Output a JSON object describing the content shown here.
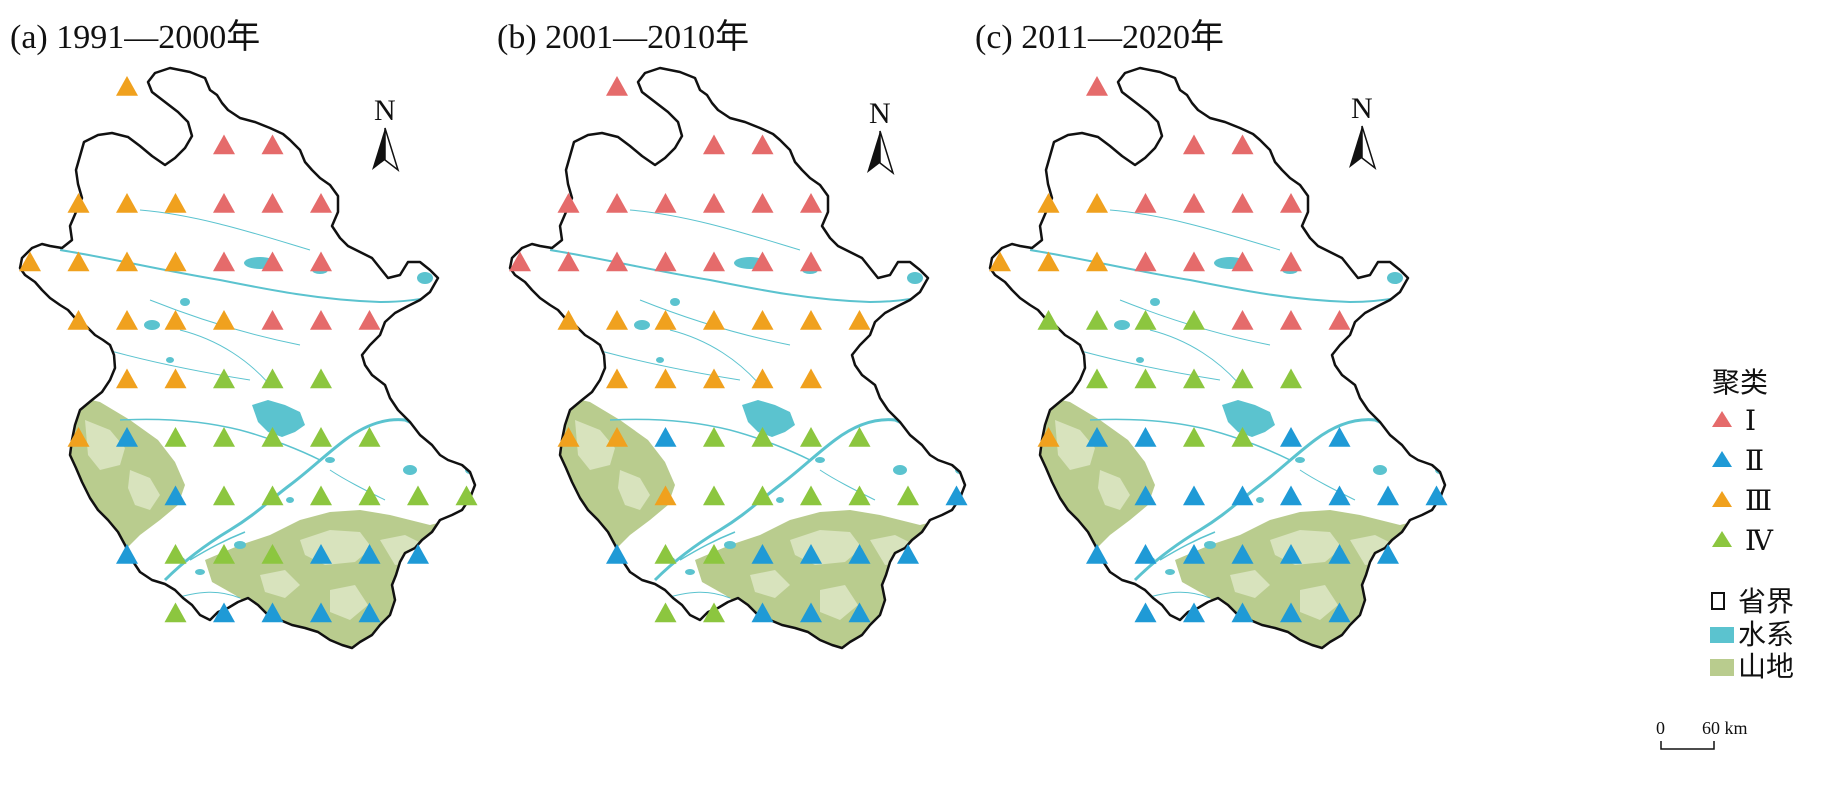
{
  "panels": [
    {
      "title": "(a) 1991—2000年",
      "grid": [
        [
          null,
          null,
          "III",
          null,
          null,
          null,
          null,
          null,
          null,
          null
        ],
        [
          null,
          null,
          null,
          null,
          "I",
          "I",
          null,
          null,
          null,
          null
        ],
        [
          null,
          "III",
          "III",
          "III",
          "I",
          "I",
          "I",
          null,
          null,
          null
        ],
        [
          "III",
          "III",
          "III",
          "III",
          "I",
          "I",
          "I",
          null,
          null,
          null
        ],
        [
          null,
          "III",
          "III",
          "III",
          "III",
          "I",
          "I",
          "I",
          null,
          null
        ],
        [
          null,
          null,
          "III",
          "III",
          "IV",
          "IV",
          "IV",
          null,
          null,
          null
        ],
        [
          null,
          "III",
          "II",
          "IV",
          "IV",
          "IV",
          "IV",
          "IV",
          null,
          null
        ],
        [
          null,
          null,
          null,
          "II",
          "IV",
          "IV",
          "IV",
          "IV",
          "IV",
          "IV"
        ],
        [
          null,
          null,
          "II",
          "IV",
          "IV",
          "IV",
          "II",
          "II",
          "II",
          null
        ],
        [
          null,
          null,
          null,
          "IV",
          "II",
          "II",
          "II",
          "II",
          null,
          null
        ]
      ]
    },
    {
      "title": "(b) 2001—2010年",
      "grid": [
        [
          null,
          null,
          "I",
          null,
          null,
          null,
          null,
          null,
          null,
          null
        ],
        [
          null,
          null,
          null,
          null,
          "I",
          "I",
          null,
          null,
          null,
          null
        ],
        [
          null,
          "I",
          "I",
          "I",
          "I",
          "I",
          "I",
          null,
          null,
          null
        ],
        [
          "I",
          "I",
          "I",
          "I",
          "I",
          "I",
          "I",
          null,
          null,
          null
        ],
        [
          null,
          "III",
          "III",
          "III",
          "III",
          "III",
          "III",
          "III",
          null,
          null
        ],
        [
          null,
          null,
          "III",
          "III",
          "III",
          "III",
          "III",
          null,
          null,
          null
        ],
        [
          null,
          "III",
          "III",
          "II",
          "IV",
          "IV",
          "IV",
          "IV",
          null,
          null
        ],
        [
          null,
          null,
          null,
          "III",
          "IV",
          "IV",
          "IV",
          "IV",
          "IV",
          "II"
        ],
        [
          null,
          null,
          "II",
          "IV",
          "IV",
          "II",
          "II",
          "II",
          "II",
          null
        ],
        [
          null,
          null,
          null,
          "IV",
          "IV",
          "II",
          "II",
          "II",
          null,
          null
        ]
      ]
    },
    {
      "title": "(c) 2011—2020年",
      "grid": [
        [
          null,
          null,
          "I",
          null,
          null,
          null,
          null,
          null,
          null,
          null
        ],
        [
          null,
          null,
          null,
          null,
          "I",
          "I",
          null,
          null,
          null,
          null
        ],
        [
          null,
          "III",
          "III",
          "I",
          "I",
          "I",
          "I",
          null,
          null,
          null
        ],
        [
          "III",
          "III",
          "III",
          "I",
          "I",
          "I",
          "I",
          null,
          null,
          null
        ],
        [
          null,
          "IV",
          "IV",
          "IV",
          "IV",
          "I",
          "I",
          "I",
          null,
          null
        ],
        [
          null,
          null,
          "IV",
          "IV",
          "IV",
          "IV",
          "IV",
          null,
          null,
          null
        ],
        [
          null,
          "III",
          "II",
          "II",
          "IV",
          "IV",
          "II",
          "II",
          null,
          null
        ],
        [
          null,
          null,
          null,
          "II",
          "II",
          "II",
          "II",
          "II",
          "II",
          "II"
        ],
        [
          null,
          null,
          "II",
          "II",
          "II",
          "II",
          "II",
          "II",
          "II",
          null
        ],
        [
          null,
          null,
          null,
          "II",
          "II",
          "II",
          "II",
          "II",
          null,
          null
        ]
      ]
    }
  ],
  "north_label": "N",
  "legend": {
    "title": "聚类",
    "clusters": [
      {
        "key": "I",
        "label": "Ⅰ",
        "color": "#e56b6b"
      },
      {
        "key": "II",
        "label": "Ⅱ",
        "color": "#1f9ad6"
      },
      {
        "key": "III",
        "label": "Ⅲ",
        "color": "#f0a11e"
      },
      {
        "key": "IV",
        "label": "Ⅳ",
        "color": "#8cc63f"
      }
    ],
    "boundary_label": "省界",
    "water_label": "水系",
    "mountain_label": "山地",
    "water_color": "#5bc3cf",
    "mountain_color": "#b9cc8e"
  },
  "scale_bar": {
    "start": "0",
    "end": "60 km"
  }
}
